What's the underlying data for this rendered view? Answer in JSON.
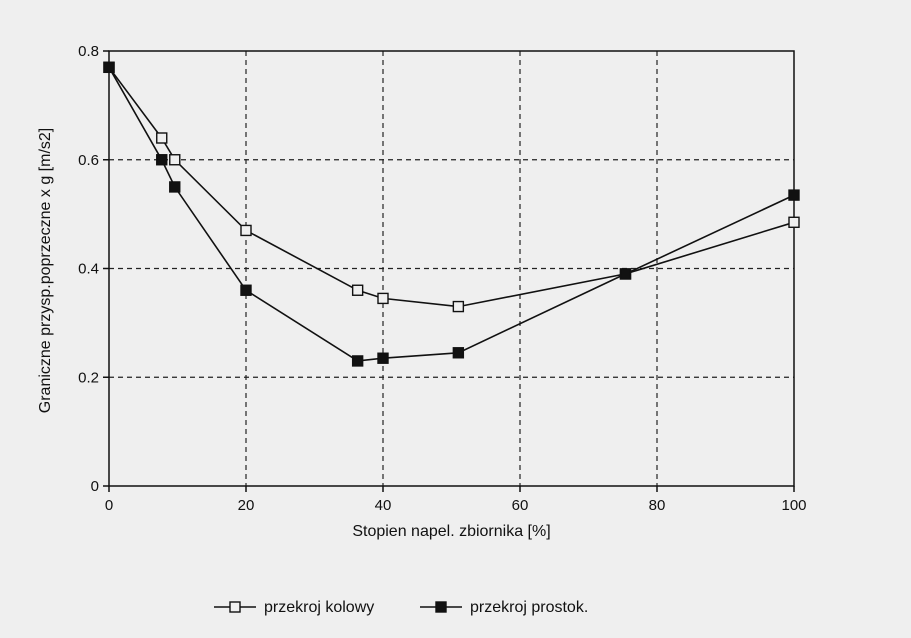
{
  "chart_data": {
    "type": "line",
    "title": "",
    "xlabel": "Stopien napel. zbiornika [%]",
    "ylabel": "Graniczne przysp.poprzeczne x g [m/s2]",
    "xlim": [
      0,
      100
    ],
    "ylim": [
      0,
      0.8
    ],
    "x_ticks": [
      0,
      20,
      40,
      60,
      80,
      100
    ],
    "x_tick_labels": [
      "0",
      "20",
      "40",
      "60",
      "80",
      "100"
    ],
    "y_ticks": [
      0,
      0.2,
      0.4,
      0.6,
      0.8
    ],
    "y_tick_labels": [
      "0",
      "0.2",
      "0.4",
      "0.6",
      "0.8"
    ],
    "grid": true,
    "grid_style": "dashed",
    "legend_position": "bottom-center",
    "series": [
      {
        "name": "przekroj kolowy",
        "marker": "square-open",
        "color": "#111111",
        "x": [
          0,
          7.7,
          9.6,
          20,
          36.3,
          40,
          51,
          75.4,
          100
        ],
        "y": [
          0.77,
          0.64,
          0.6,
          0.47,
          0.36,
          0.345,
          0.33,
          0.39,
          0.485
        ]
      },
      {
        "name": "przekroj prostok.",
        "marker": "square-filled",
        "color": "#111111",
        "x": [
          0,
          7.7,
          9.6,
          20,
          36.3,
          40,
          51,
          75.4,
          100
        ],
        "y": [
          0.77,
          0.6,
          0.55,
          0.36,
          0.23,
          0.235,
          0.245,
          0.39,
          0.535
        ]
      }
    ]
  }
}
